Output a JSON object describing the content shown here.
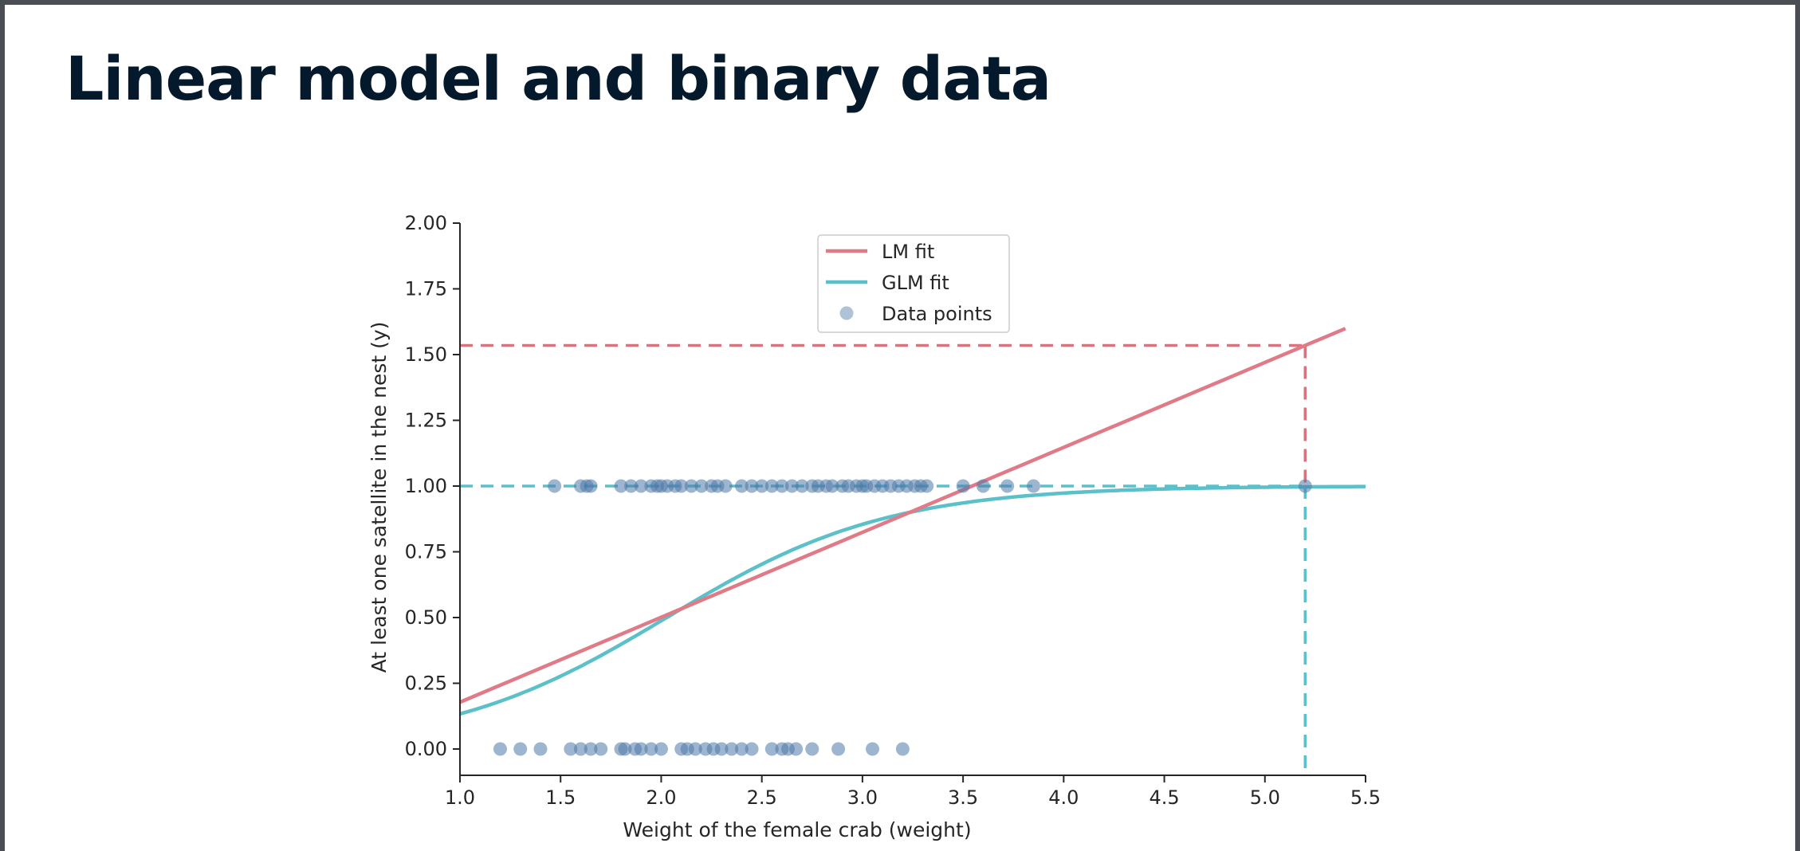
{
  "slide": {
    "title": "Linear model and binary data"
  },
  "chart_data": {
    "type": "scatter",
    "xlabel": "Weight of the female crab (weight)",
    "ylabel": "At least one satellite in the nest (y)",
    "xlim": [
      1.0,
      5.5
    ],
    "ylim": [
      -0.1,
      2.0
    ],
    "x_ticks": [
      "1.0",
      "1.5",
      "2.0",
      "2.5",
      "3.0",
      "3.5",
      "4.0",
      "4.5",
      "5.0",
      "5.5"
    ],
    "y_ticks": [
      "0.00",
      "0.25",
      "0.50",
      "0.75",
      "1.00",
      "1.25",
      "1.50",
      "1.75",
      "2.00"
    ],
    "legend": {
      "position": "upper center",
      "entries": [
        "LM fit",
        "GLM fit",
        "Data points"
      ]
    },
    "colors": {
      "lm": "#e07a87",
      "glm": "#5bc0c9",
      "points": "#4e79a7"
    },
    "series": [
      {
        "name": "LM fit",
        "kind": "line",
        "intercept": -0.145,
        "slope": 0.323,
        "x_range": [
          1.0,
          5.4
        ]
      },
      {
        "name": "GLM fit",
        "kind": "logistic",
        "intercept": -3.69,
        "slope": 1.82,
        "x_range": [
          1.0,
          5.5
        ]
      },
      {
        "name": "Data points",
        "kind": "scatter",
        "x": [
          1.47,
          1.6,
          1.63,
          1.65,
          1.8,
          1.85,
          1.9,
          1.95,
          1.98,
          2.0,
          2.03,
          2.07,
          2.1,
          2.15,
          2.2,
          2.25,
          2.28,
          2.32,
          2.4,
          2.45,
          2.5,
          2.55,
          2.6,
          2.65,
          2.7,
          2.75,
          2.78,
          2.82,
          2.85,
          2.9,
          2.93,
          2.97,
          3.0,
          3.02,
          3.06,
          3.1,
          3.14,
          3.18,
          3.22,
          3.26,
          3.29,
          3.32,
          3.5,
          3.6,
          3.72,
          3.85,
          5.2,
          1.2,
          1.3,
          1.4,
          1.55,
          1.6,
          1.65,
          1.7,
          1.8,
          1.82,
          1.87,
          1.9,
          1.95,
          2.0,
          2.1,
          2.13,
          2.17,
          2.22,
          2.26,
          2.3,
          2.35,
          2.4,
          2.45,
          2.55,
          2.6,
          2.63,
          2.67,
          2.75,
          2.88,
          3.05,
          3.2
        ],
        "y": [
          1,
          1,
          1,
          1,
          1,
          1,
          1,
          1,
          1,
          1,
          1,
          1,
          1,
          1,
          1,
          1,
          1,
          1,
          1,
          1,
          1,
          1,
          1,
          1,
          1,
          1,
          1,
          1,
          1,
          1,
          1,
          1,
          1,
          1,
          1,
          1,
          1,
          1,
          1,
          1,
          1,
          1,
          1,
          1,
          1,
          1,
          1,
          0,
          0,
          0,
          0,
          0,
          0,
          0,
          0,
          0,
          0,
          0,
          0,
          0,
          0,
          0,
          0,
          0,
          0,
          0,
          0,
          0,
          0,
          0,
          0,
          0,
          0,
          0,
          0,
          0,
          0
        ]
      }
    ],
    "reference_lines": [
      {
        "name": "LM prediction",
        "x": 5.2,
        "y": 1.535,
        "color": "#d9737e"
      },
      {
        "name": "GLM prediction",
        "x": 5.2,
        "y": 1.0,
        "color": "#5bc0c9"
      }
    ]
  }
}
